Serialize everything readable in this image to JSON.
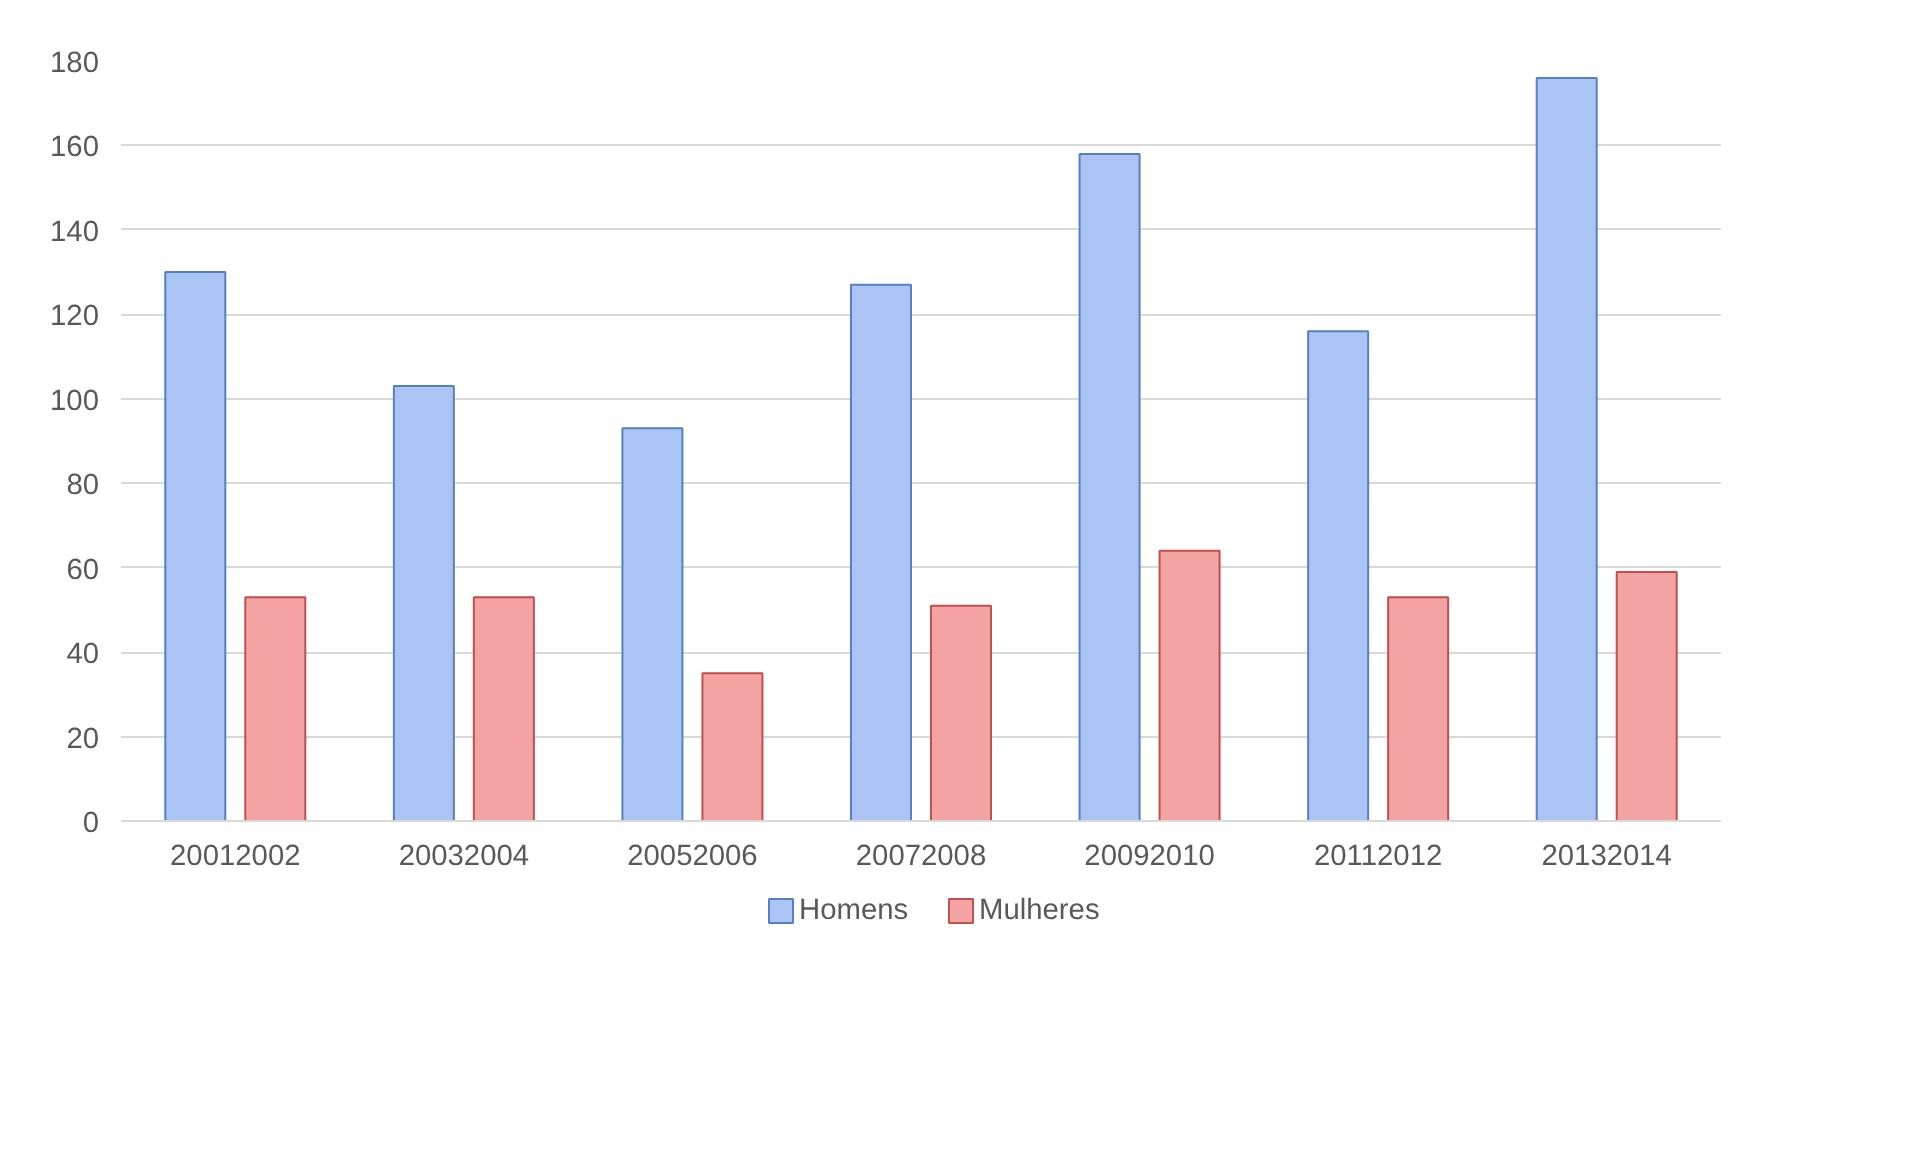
{
  "chart_data": {
    "type": "bar",
    "categories": [
      "20012002",
      "20032004",
      "20052006",
      "20072008",
      "20092010",
      "20112012",
      "20132014"
    ],
    "series": [
      {
        "name": "Homens",
        "color": "#a9c4f5",
        "values": [
          130,
          103,
          93,
          127,
          158,
          116,
          176
        ]
      },
      {
        "name": "Mulheres",
        "color": "#f4a3a3",
        "values": [
          53,
          53,
          35,
          51,
          64,
          53,
          59
        ]
      }
    ],
    "ylim": [
      0,
      180
    ],
    "yticks": [
      0,
      20,
      40,
      60,
      80,
      100,
      120,
      140,
      160,
      180
    ],
    "grid": "y",
    "legend": "bottom"
  }
}
